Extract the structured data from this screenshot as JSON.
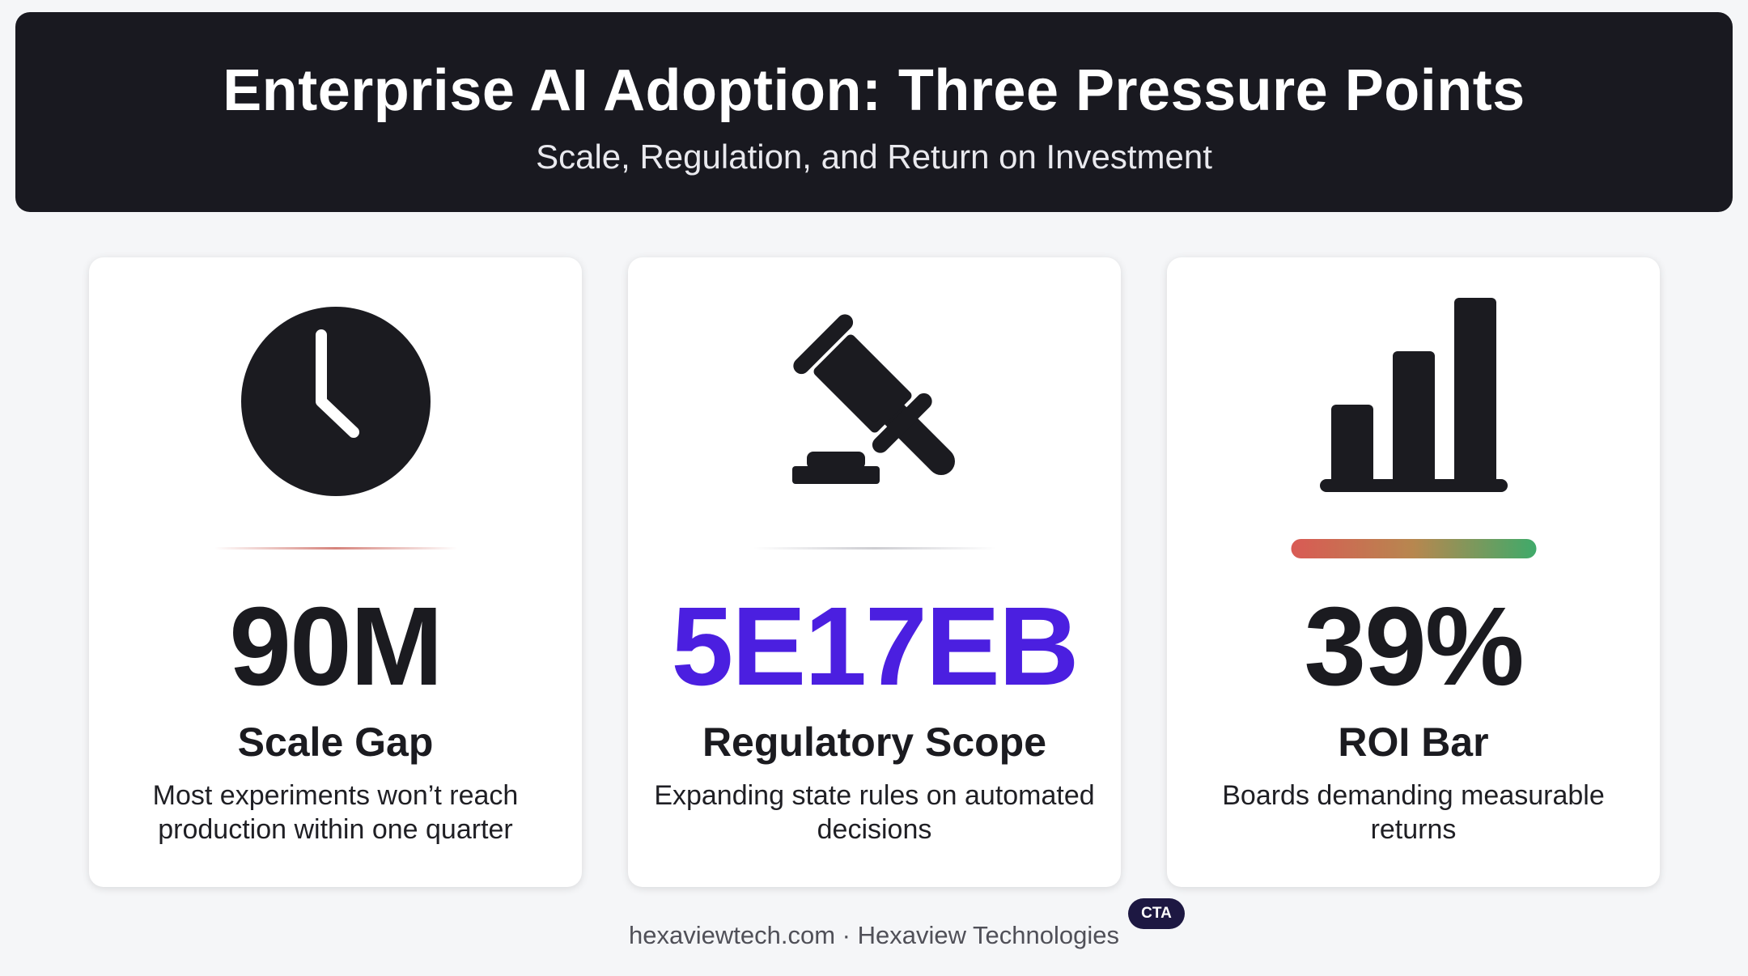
{
  "header": {
    "title": "Enterprise AI Adoption: Three Pressure Points",
    "subtitle": "Scale, Regulation, and Return on Investment"
  },
  "cards": [
    {
      "icon": "clock-icon",
      "stat": "90M",
      "heading": "Scale Gap",
      "description": "Most experiments won’t reach production within one quarter"
    },
    {
      "icon": "gavel-icon",
      "stat": "5E17EB",
      "heading": "Regulatory Scope",
      "description": "Expanding state rules on automated decisions"
    },
    {
      "icon": "bar-chart-icon",
      "stat": "39%",
      "heading": "ROI Bar",
      "description": "Boards demanding measurable returns"
    }
  ],
  "footer": {
    "text": "hexaviewtech.com · Hexaview Technologies",
    "badge": "CTA"
  },
  "colors": {
    "banner": "#191920",
    "accent_stat": "#4b1fe0",
    "roi_gradient_start": "#d95a54",
    "roi_gradient_end": "#3faa6a"
  }
}
